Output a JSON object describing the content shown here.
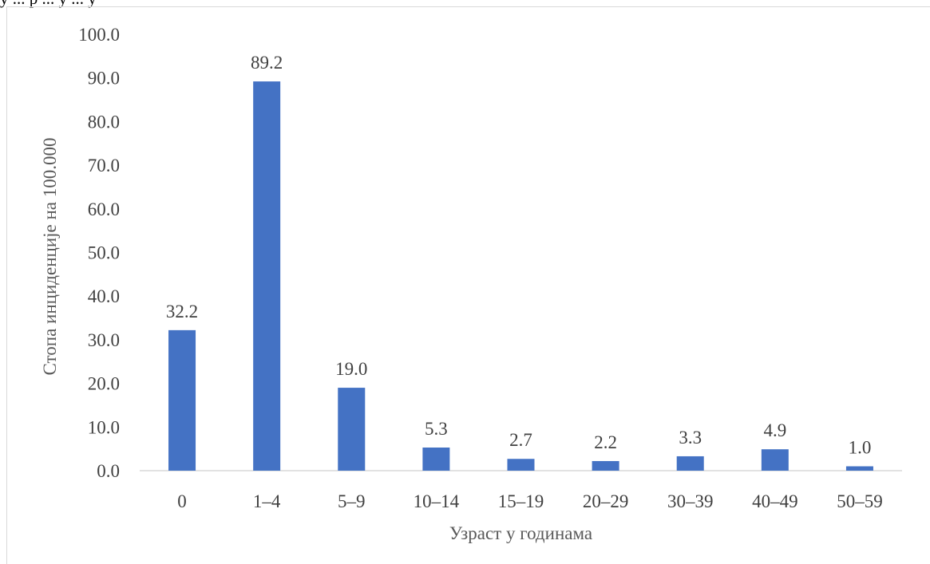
{
  "top_text": "у ... р ... у ... у",
  "colors": {
    "bar": "#4472C4",
    "axis": "#d9d9d9",
    "text": "#404040"
  },
  "chart_data": {
    "type": "bar",
    "categories": [
      "0",
      "1–4",
      "5–9",
      "10–14",
      "15–19",
      "20–29",
      "30–39",
      "40–49",
      "50–59"
    ],
    "values": [
      32.2,
      89.2,
      19.0,
      5.3,
      2.7,
      2.2,
      3.3,
      4.9,
      1.0
    ],
    "value_labels": [
      "32.2",
      "89.2",
      "19.0",
      "5.3",
      "2.7",
      "2.2",
      "3.3",
      "4.9",
      "1.0"
    ],
    "xlabel": "Узраст у годинама",
    "ylabel": "Стопа инциденције на 100.000",
    "ylim": [
      0,
      100
    ],
    "yticks": [
      "0.0",
      "10.0",
      "20.0",
      "30.0",
      "40.0",
      "50.0",
      "60.0",
      "70.0",
      "80.0",
      "90.0",
      "100.0"
    ],
    "grid": false,
    "legend": "none"
  }
}
